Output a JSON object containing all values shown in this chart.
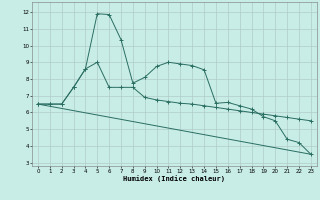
{
  "xlabel": "Humidex (Indice chaleur)",
  "background_color": "#c8ece6",
  "grid_color": "#b0ccc8",
  "line_color": "#2a6e62",
  "xlim": [
    -0.5,
    23.5
  ],
  "ylim": [
    2.8,
    12.6
  ],
  "xticks": [
    0,
    1,
    2,
    3,
    4,
    5,
    6,
    7,
    8,
    9,
    10,
    11,
    12,
    13,
    14,
    15,
    16,
    17,
    18,
    19,
    20,
    21,
    22,
    23
  ],
  "yticks": [
    3,
    4,
    5,
    6,
    7,
    8,
    9,
    10,
    11,
    12
  ],
  "line1_x": [
    0,
    1,
    2,
    3,
    4,
    5,
    6,
    7,
    8,
    9,
    10,
    11,
    12,
    13,
    14,
    15,
    16,
    17,
    18,
    19,
    20,
    21,
    22,
    23
  ],
  "line1_y": [
    6.5,
    6.5,
    6.5,
    7.5,
    8.6,
    11.9,
    11.85,
    10.35,
    7.75,
    8.1,
    8.75,
    9.0,
    8.9,
    8.8,
    8.55,
    6.55,
    6.6,
    6.4,
    6.2,
    5.75,
    5.5,
    4.4,
    4.2,
    3.5
  ],
  "line2_x": [
    0,
    1,
    2,
    3,
    4,
    5,
    6,
    7,
    8,
    9,
    10,
    11,
    12,
    13,
    14,
    15,
    16,
    17,
    18,
    19,
    20,
    21,
    22,
    23
  ],
  "line2_y": [
    6.5,
    6.5,
    6.5,
    7.5,
    8.6,
    9.0,
    7.5,
    7.5,
    7.5,
    6.9,
    6.75,
    6.65,
    6.55,
    6.5,
    6.4,
    6.3,
    6.2,
    6.1,
    6.0,
    5.9,
    5.8,
    5.7,
    5.6,
    5.5
  ],
  "line3_x": [
    0,
    23
  ],
  "line3_y": [
    6.5,
    3.5
  ]
}
